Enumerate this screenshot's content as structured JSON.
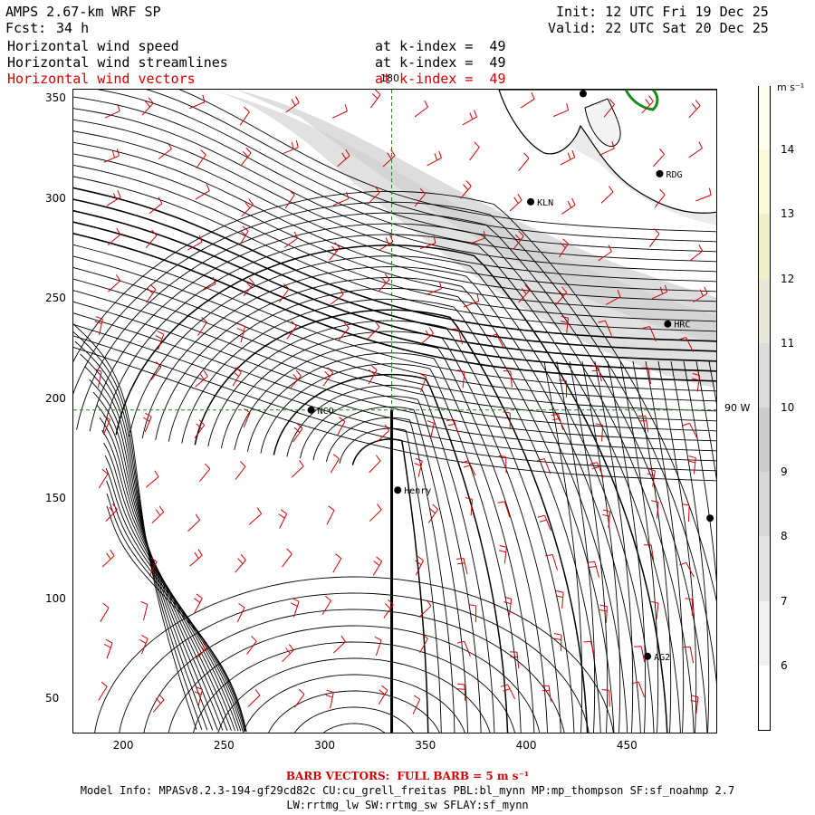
{
  "header": {
    "model": "AMPS 2.67-km WRF SP",
    "fcst_label": "Fcst:",
    "fcst_value": "34 h",
    "init": "Init: 12 UTC Fri 19 Dec 25",
    "valid": "Valid: 22 UTC Sat 20 Dec 25",
    "fields": [
      {
        "name": "Horizontal wind speed",
        "level": "at k-index =  49",
        "color": "#000000"
      },
      {
        "name": "Horizontal wind streamlines",
        "level": "at k-index =  49",
        "color": "#000000"
      },
      {
        "name": "Horizontal wind vectors",
        "level": "at k-index =  49",
        "color": "#d40000"
      }
    ]
  },
  "axes": {
    "x_ticks": [
      "200",
      "250",
      "300",
      "350",
      "400",
      "450"
    ],
    "x_range": [
      175,
      495
    ],
    "y_ticks": [
      "50",
      "100",
      "150",
      "200",
      "250",
      "300",
      "350"
    ],
    "y_range": [
      33,
      355
    ],
    "grid_labels": {
      "meridian_top": "180",
      "meridian_right": "90 W"
    }
  },
  "colorbar": {
    "unit": "m s⁻¹",
    "levels": [
      "6",
      "7",
      "8",
      "9",
      "10",
      "11",
      "12",
      "13",
      "14"
    ],
    "range": [
      5,
      15
    ],
    "colors": [
      "#ffffff",
      "#f0f0f0",
      "#e4e4e4",
      "#d8d8d8",
      "#cccccc",
      "#dcdcdc",
      "#e8e8d8",
      "#f0f0c8",
      "#fafad8",
      "#fffff0"
    ]
  },
  "stations": [
    {
      "id": "NCO",
      "x": 293,
      "y": 195
    },
    {
      "id": "Henry",
      "x": 336,
      "y": 155
    },
    {
      "id": "KLN",
      "x": 402,
      "y": 299
    },
    {
      "id": "RDG",
      "x": 466,
      "y": 313
    },
    {
      "id": "HRC",
      "x": 470,
      "y": 238
    },
    {
      "id": "AG2",
      "x": 460,
      "y": 72
    },
    {
      "id": "",
      "x": 428,
      "y": 353
    },
    {
      "id": "",
      "x": 491,
      "y": 141
    }
  ],
  "footer": {
    "barb": "BARB VECTORS:  FULL BARB = 5 m s⁻¹",
    "model_info": "Model Info: MPASv8.2.3-194-gf29cd82c CU:cu_grell_freitas PBL:bl_mynn MP:mp_thompson SF:sf_noahmp 2.7",
    "physics": "LW:rrtmg_lw SW:rrtmg_sw SFLAY:sf_mynn"
  }
}
